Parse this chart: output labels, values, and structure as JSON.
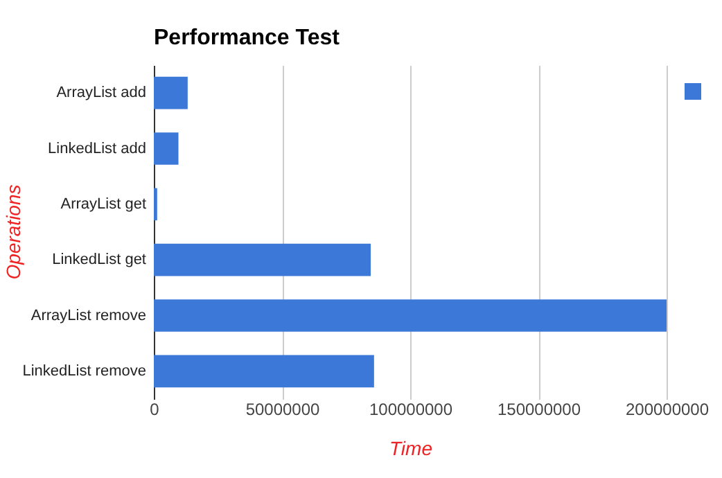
{
  "chart_data": {
    "type": "bar",
    "orientation": "horizontal",
    "title": "Performance Test",
    "xlabel": "Time",
    "ylabel": "Operations",
    "categories": [
      "ArrayList add",
      "LinkedList add",
      "ArrayList get",
      "LinkedList get",
      "ArrayList remove",
      "LinkedList remove"
    ],
    "series": [
      {
        "color": "#3c78d8",
        "values": [
          13200000,
          9600000,
          1300000,
          84600000,
          200000000,
          85900000
        ]
      }
    ],
    "xlim": [
      0,
      200000000
    ],
    "xticks": [
      0,
      50000000,
      100000000,
      150000000,
      200000000
    ],
    "grid": "x"
  }
}
